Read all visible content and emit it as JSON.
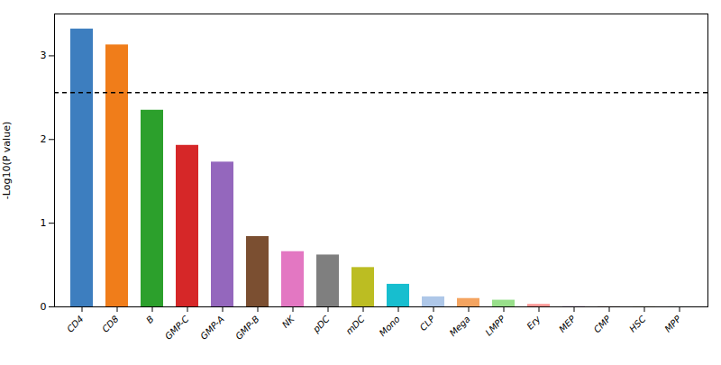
{
  "chart_data": {
    "type": "bar",
    "categories": [
      "CD4",
      "CD8",
      "B",
      "GMP-C",
      "GMP-A",
      "GMP-B",
      "NK",
      "pDC",
      "mDC",
      "Mono",
      "CLP",
      "Mega",
      "LMPP",
      "Ery",
      "MEP",
      "CMP",
      "HSC",
      "MPP"
    ],
    "values": [
      3.32,
      3.13,
      2.35,
      1.93,
      1.73,
      0.84,
      0.66,
      0.62,
      0.47,
      0.27,
      0.12,
      0.1,
      0.08,
      0.03,
      0.005,
      0.003,
      0.002,
      0.001
    ],
    "colors": [
      "#3d7ebf",
      "#f07d1a",
      "#2ca02c",
      "#d62728",
      "#9467bd",
      "#7b4f31",
      "#e377c2",
      "#7f7f7f",
      "#bcbd22",
      "#17becf",
      "#aec7e8",
      "#f4a460",
      "#98df8a",
      "#ff9896",
      "#c5b0d5",
      "#c49c94",
      "#dbdb8d",
      "#9edae5"
    ],
    "dashed_line_y": 2.56,
    "ylabel": "-Log10(P value)",
    "ylim": [
      0,
      3.5
    ],
    "yticks": [
      0,
      1,
      2,
      3
    ],
    "grid": false
  }
}
